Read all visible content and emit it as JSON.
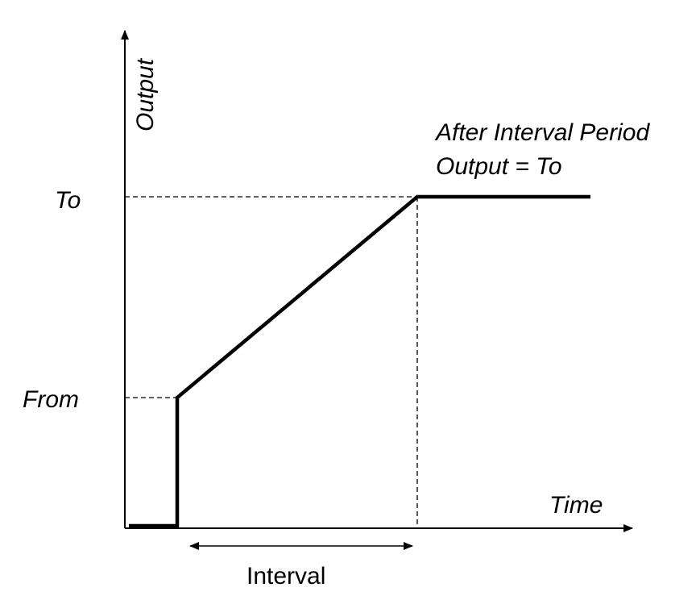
{
  "labels": {
    "y_axis": "Output",
    "x_axis": "Time",
    "to": "To",
    "from": "From",
    "interval": "Interval",
    "note_line1": "After Interval Period",
    "note_line2": "Output = To"
  },
  "colors": {
    "stroke": "#000000",
    "background": "#ffffff"
  }
}
